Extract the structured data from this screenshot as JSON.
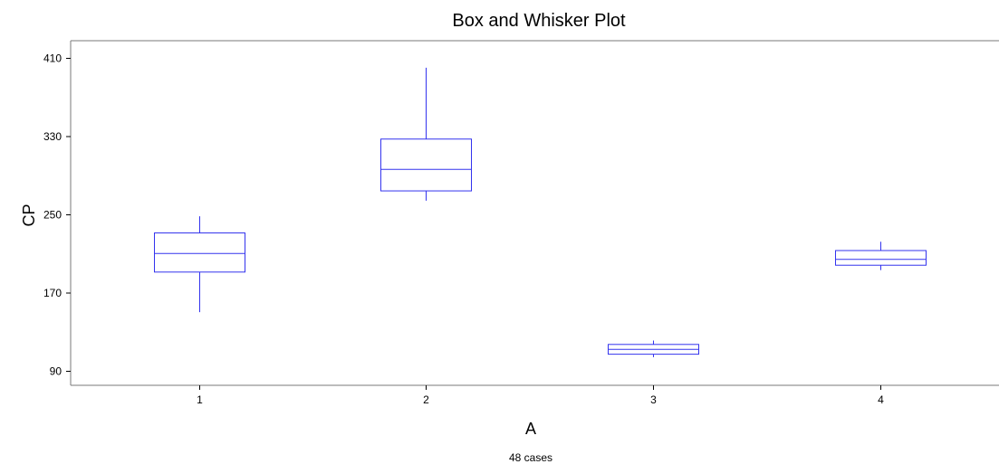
{
  "chart_data": {
    "type": "box",
    "title": "Box and Whisker Plot",
    "xlabel": "A",
    "ylabel": "CP",
    "footnote": "48 cases",
    "categories": [
      "1",
      "2",
      "3",
      "4"
    ],
    "yticks": [
      90,
      170,
      250,
      330,
      410
    ],
    "ylim": [
      76,
      422
    ],
    "boxes": [
      {
        "category": "1",
        "min": 150,
        "q1": 191,
        "median": 210,
        "q3": 231,
        "max": 248
      },
      {
        "category": "2",
        "min": 264,
        "q1": 274,
        "median": 296,
        "q3": 327,
        "max": 400
      },
      {
        "category": "3",
        "min": 104,
        "q1": 107,
        "median": 112,
        "q3": 117,
        "max": 121
      },
      {
        "category": "4",
        "min": 193,
        "q1": 198,
        "median": 204,
        "q3": 213,
        "max": 222
      }
    ],
    "colors": {
      "box": "#3333ee",
      "axis": "#000000"
    },
    "grid": false
  }
}
